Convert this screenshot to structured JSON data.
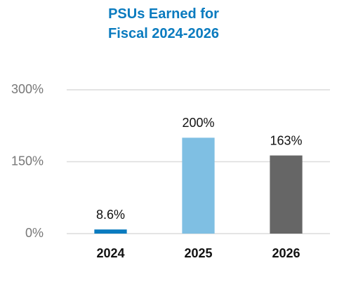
{
  "chart_data": {
    "type": "bar",
    "title": "PSUs Earned for Fiscal 2024-2026",
    "categories": [
      "2024",
      "2025",
      "2026"
    ],
    "values": [
      8.6,
      200,
      163
    ],
    "value_labels": [
      "8.6%",
      "200%",
      "163%"
    ],
    "colors": [
      "#0a7bbf",
      "#7fbfe3",
      "#666666"
    ],
    "ylim": [
      0,
      300
    ],
    "yticks": [
      {
        "value": 0,
        "label": "0%"
      },
      {
        "value": 150,
        "label": "150%"
      },
      {
        "value": 300,
        "label": "300%"
      }
    ],
    "grid": true
  }
}
